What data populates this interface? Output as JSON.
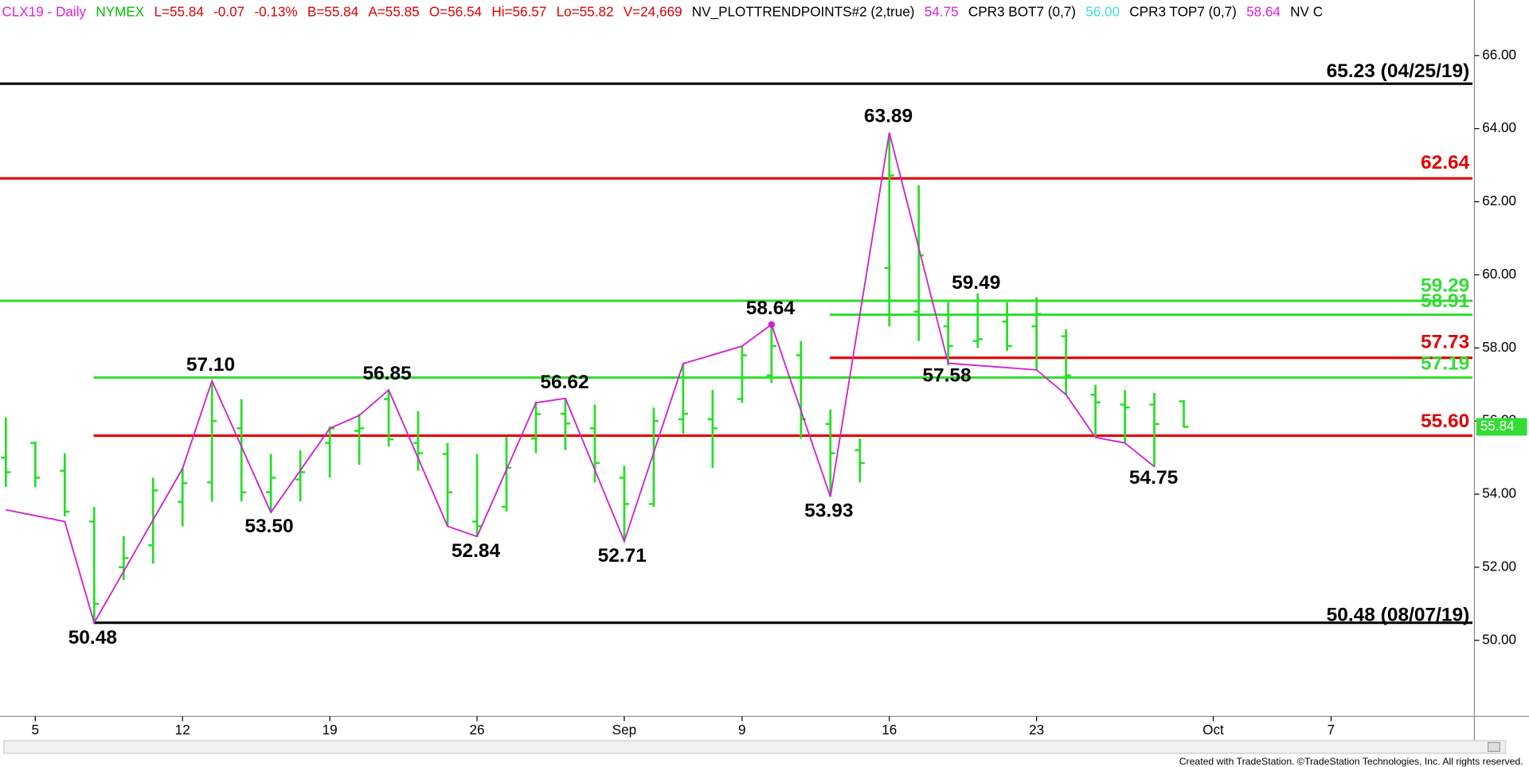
{
  "chart_data": {
    "type": "ohlc",
    "header": [
      {
        "text": "CLX19 - Daily",
        "color": "#e020e0"
      },
      {
        "text": "NYMEX",
        "color": "#00c000"
      },
      {
        "text": "L=55.84",
        "color": "#e00000"
      },
      {
        "text": "-0.07",
        "color": "#e00000"
      },
      {
        "text": "-0.13%",
        "color": "#e00000"
      },
      {
        "text": "B=55.84",
        "color": "#e00000"
      },
      {
        "text": "A=55.85",
        "color": "#e00000"
      },
      {
        "text": "O=56.54",
        "color": "#e00000"
      },
      {
        "text": "Hi=56.57",
        "color": "#e00000"
      },
      {
        "text": "Lo=55.82",
        "color": "#e00000"
      },
      {
        "text": "V=24,669",
        "color": "#e00000"
      },
      {
        "text": "NV_PLOTTRENDPOINTS#2 (2,true)",
        "color": "#000000"
      },
      {
        "text": "54.75",
        "color": "#e020e0"
      },
      {
        "text": "CPR3 BOT7 (0,7)",
        "color": "#000000"
      },
      {
        "text": "56.00",
        "color": "#40e0e0"
      },
      {
        "text": "CPR3 TOP7 (0,7)",
        "color": "#000000"
      },
      {
        "text": "58.64",
        "color": "#e020e0"
      },
      {
        "text": "NV C",
        "color": "#000000"
      }
    ],
    "categories": [
      null,
      "5",
      null,
      null,
      null,
      null,
      "12",
      null,
      null,
      null,
      null,
      "19",
      null,
      null,
      null,
      null,
      "26",
      null,
      null,
      null,
      null,
      "Sep",
      null,
      null,
      null,
      "9",
      null,
      null,
      null,
      null,
      "16",
      null,
      null,
      null,
      null,
      "23",
      null,
      null,
      null,
      null,
      null,
      "Oct",
      null,
      null,
      null,
      "7",
      null,
      null,
      null,
      null
    ],
    "open": [
      55.0,
      55.4,
      54.64,
      53.25,
      52.0,
      52.6,
      53.79,
      54.32,
      55.8,
      54.05,
      54.4,
      55.4,
      55.73,
      56.6,
      55.4,
      55.1,
      53.25,
      53.65,
      55.52,
      56.2,
      55.8,
      54.45,
      53.73,
      56.05,
      56.05,
      56.6,
      57.25,
      57.8,
      55.92,
      55.2,
      60.19,
      58.99,
      58.59,
      58.19,
      58.72,
      58.59,
      58.32,
      56.72,
      56.45,
      56.45,
      56.54,
      null,
      null,
      null,
      null,
      null,
      null,
      null,
      null,
      null
    ],
    "high": [
      56.1,
      55.44,
      55.12,
      53.65,
      52.85,
      54.45,
      54.72,
      57.1,
      56.6,
      55.1,
      55.2,
      55.85,
      56.2,
      56.85,
      56.27,
      55.4,
      55.1,
      55.57,
      56.53,
      56.62,
      56.45,
      54.77,
      56.37,
      57.57,
      56.85,
      58.05,
      58.64,
      58.19,
      56.32,
      55.52,
      63.89,
      62.45,
      59.25,
      59.49,
      59.25,
      59.39,
      58.51,
      56.99,
      56.85,
      56.77,
      56.57,
      null,
      null,
      null,
      null,
      null,
      null,
      null,
      null,
      null
    ],
    "low": [
      54.2,
      54.19,
      53.39,
      50.48,
      51.65,
      52.1,
      53.12,
      53.79,
      53.8,
      53.5,
      53.8,
      54.45,
      54.8,
      55.3,
      54.64,
      53.12,
      52.84,
      53.52,
      55.12,
      55.2,
      54.32,
      52.71,
      53.65,
      55.65,
      54.72,
      56.5,
      57.04,
      55.52,
      53.93,
      54.32,
      58.59,
      58.19,
      57.52,
      58.0,
      57.92,
      57.39,
      56.72,
      55.57,
      55.39,
      54.75,
      55.82,
      null,
      null,
      null,
      null,
      null,
      null,
      null,
      null,
      null
    ],
    "close": [
      54.6,
      54.45,
      53.52,
      51.0,
      52.25,
      54.1,
      54.3,
      56.0,
      54.05,
      54.45,
      54.6,
      55.8,
      55.8,
      55.5,
      55.12,
      54.05,
      53.12,
      54.72,
      56.19,
      55.93,
      54.85,
      53.73,
      56.0,
      56.2,
      55.8,
      57.8,
      58.05,
      56.05,
      55.12,
      54.85,
      62.72,
      60.53,
      58.05,
      58.24,
      58.05,
      58.93,
      57.25,
      56.51,
      56.37,
      55.92,
      55.84,
      null,
      null,
      null,
      null,
      null,
      null,
      null,
      null,
      null
    ],
    "color": "#22e022",
    "trend": {
      "color": "#d020d0",
      "values": [
        53.57,
        null,
        53.25,
        50.48,
        null,
        null,
        54.7,
        57.1,
        null,
        53.5,
        null,
        55.8,
        56.15,
        56.85,
        null,
        53.12,
        52.84,
        null,
        56.5,
        56.62,
        null,
        52.71,
        null,
        57.57,
        null,
        58.05,
        58.64,
        null,
        53.93,
        null,
        63.89,
        null,
        57.58,
        null,
        null,
        57.4,
        56.72,
        55.55,
        55.4,
        54.75,
        null,
        null,
        null,
        null,
        null,
        null,
        null,
        null,
        null,
        null
      ]
    },
    "levels": [
      {
        "value": 65.23,
        "label": "65.23 (04/25/19)",
        "color": "#000000"
      },
      {
        "value": 62.64,
        "label": "62.64",
        "color": "#e00000"
      },
      {
        "value": 59.29,
        "label": "59.29",
        "color": "#33dd33"
      },
      {
        "value": 58.91,
        "label": "58.91",
        "color": "#33dd33"
      },
      {
        "value": 57.73,
        "label": "57.73",
        "color": "#e00000"
      },
      {
        "value": 57.19,
        "label": "57.19",
        "color": "#33dd33"
      },
      {
        "value": 55.6,
        "label": "55.60",
        "color": "#e00000"
      },
      {
        "value": 50.48,
        "label": "50.48 (08/07/19)",
        "color": "#000000"
      }
    ],
    "annotations": [
      "57.10",
      "56.85",
      "56.62",
      "58.64",
      "63.89",
      "59.49",
      "57.58",
      "53.50",
      "52.84",
      "52.71",
      "53.93",
      "54.75",
      "50.48"
    ],
    "last_price": {
      "value": 55.84,
      "label": "55.84"
    },
    "ylim": [
      47.92,
      67.52
    ],
    "yticks": [
      {
        "value": 50,
        "label": "50.00"
      },
      {
        "value": 52,
        "label": "52.00"
      },
      {
        "value": 54,
        "label": "54.00"
      },
      {
        "value": 56,
        "label": "56.00"
      },
      {
        "value": 58,
        "label": "58.00"
      },
      {
        "value": 60,
        "label": "60.00"
      },
      {
        "value": 62,
        "label": "62.00"
      },
      {
        "value": 64,
        "label": "64.00"
      },
      {
        "value": 66,
        "label": "66.00"
      }
    ],
    "footer": "Created with TradeStation. ©TradeStation Technologies, Inc. All rights reserved."
  }
}
